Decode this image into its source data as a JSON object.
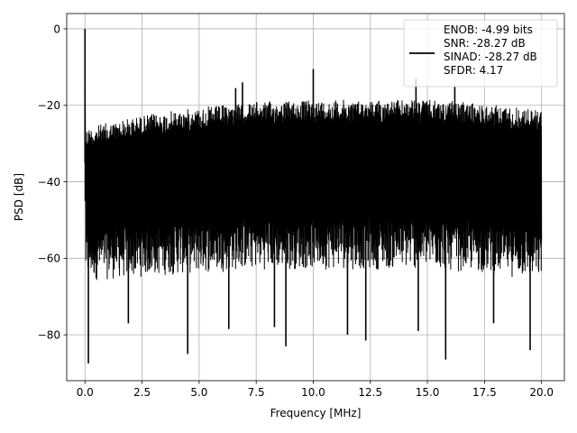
{
  "chart_data": {
    "type": "line",
    "xlabel": "Frequency [MHz]",
    "ylabel": "PSD [dB]",
    "xlim": [
      -0.8,
      21.0
    ],
    "ylim": [
      -92,
      4
    ],
    "xticks": [
      0.0,
      2.5,
      5.0,
      7.5,
      10.0,
      12.5,
      15.0,
      17.5,
      20.0
    ],
    "xtick_labels": [
      "0.0",
      "2.5",
      "5.0",
      "7.5",
      "10.0",
      "12.5",
      "15.0",
      "17.5",
      "20.0"
    ],
    "yticks": [
      0,
      -20,
      -40,
      -60,
      -80
    ],
    "ytick_labels": [
      "0",
      "−20",
      "−40",
      "−60",
      "−80"
    ],
    "grid": true,
    "legend_position": "top-right",
    "legend": {
      "lines": [
        "ENOB: -4.99 bits",
        "SNR: -28.27 dB",
        "SINAD: -28.27 dB",
        "SFDR: 4.17"
      ]
    },
    "series": [
      {
        "color": "#000000",
        "x_range": [
          0.0,
          20.0
        ],
        "band_upper": [
          [
            0.2,
            -25.5
          ],
          [
            2.5,
            -22.5
          ],
          [
            5.0,
            -20.5
          ],
          [
            7.5,
            -19.0
          ],
          [
            10.0,
            -18.5
          ],
          [
            12.5,
            -18.5
          ],
          [
            15.0,
            -18.5
          ],
          [
            17.5,
            -19.5
          ],
          [
            20.0,
            -21.0
          ]
        ],
        "band_lower": [
          [
            0.2,
            -66
          ],
          [
            2.5,
            -65
          ],
          [
            5.0,
            -64
          ],
          [
            7.5,
            -63
          ],
          [
            10.0,
            -63
          ],
          [
            12.5,
            -63
          ],
          [
            15.0,
            -63
          ],
          [
            17.5,
            -64
          ],
          [
            20.0,
            -66
          ]
        ],
        "peaks": [
          [
            0.0,
            0.0
          ],
          [
            6.6,
            -15.5
          ],
          [
            6.9,
            -14.0
          ],
          [
            10.0,
            -10.5
          ],
          [
            14.5,
            -13.0
          ],
          [
            16.2,
            -15.0
          ]
        ],
        "dips": [
          [
            0.15,
            -87.5
          ],
          [
            4.5,
            -85.0
          ],
          [
            8.8,
            -83.0
          ],
          [
            12.3,
            -81.5
          ],
          [
            15.8,
            -86.5
          ],
          [
            19.5,
            -84.0
          ],
          [
            1.9,
            -77.0
          ],
          [
            6.3,
            -78.5
          ],
          [
            8.3,
            -78.0
          ],
          [
            11.5,
            -80.0
          ],
          [
            14.6,
            -79.0
          ],
          [
            17.9,
            -77.0
          ]
        ]
      }
    ]
  }
}
